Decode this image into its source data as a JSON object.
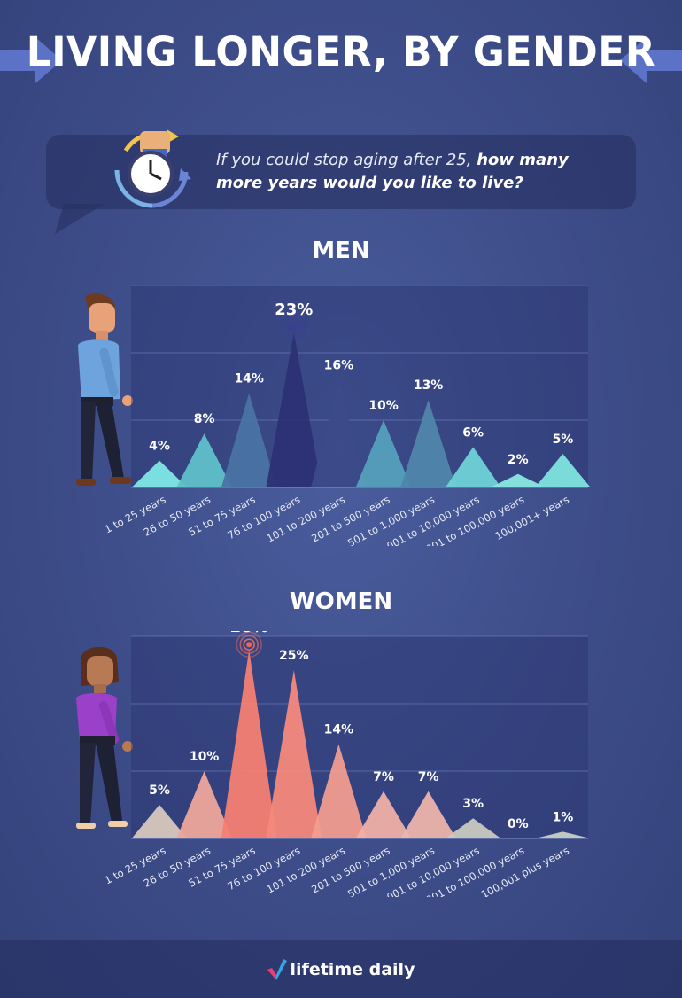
{
  "header": {
    "title": "LIVING LONGER, BY GENDER"
  },
  "question": {
    "part1": "If you could stop aging after 25, ",
    "part2": "how many more years would you like to live?"
  },
  "chart_data": [
    {
      "type": "bar",
      "title": "MEN",
      "categories": [
        "1 to 25 years",
        "26 to 50 years",
        "51 to 75 years",
        "76 to 100 years",
        "101 to 200 years",
        "201 to 500 years",
        "501 to 1,000 years",
        "1,001 to 10,000 years",
        "10,001 to 100,000 years",
        "100,001+ years"
      ],
      "values": [
        4,
        8,
        14,
        23,
        16,
        10,
        13,
        6,
        2,
        5
      ],
      "value_labels": [
        "4%",
        "8%",
        "14%",
        "23%",
        "16%",
        "10%",
        "13%",
        "6%",
        "2%",
        "5%"
      ],
      "unit": "%",
      "ylim": [
        0,
        30
      ],
      "grid": true,
      "highlight_index": 3,
      "colors": [
        "#7fe8e6",
        "#5fc0c8",
        "#4a73a3",
        "#2c3175",
        "#3c4b8a",
        "#55a0bc",
        "#4f86aa",
        "#6fd3d6",
        "#8ae8e2",
        "#7ee4df"
      ]
    },
    {
      "type": "bar",
      "title": "WOMEN",
      "categories": [
        "1 to 25 years",
        "26 to 50 years",
        "51 to 75 years",
        "76 to 100 years",
        "101 to 200 years",
        "201 to 500 years",
        "501 to 1,000 years",
        "1,001 to 10,000 years",
        "10,001 to 100,000 years",
        "100,001 plus years"
      ],
      "values": [
        5,
        10,
        28,
        25,
        14,
        7,
        7,
        3,
        0,
        1
      ],
      "value_labels": [
        "5%",
        "10%",
        "28%",
        "25%",
        "14%",
        "7%",
        "7%",
        "3%",
        "0%",
        "1%"
      ],
      "unit": "%",
      "ylim": [
        0,
        30
      ],
      "grid": true,
      "highlight_index": 2,
      "colors": [
        "#d8c8bd",
        "#eea79c",
        "#f47f73",
        "#f5897c",
        "#f29c90",
        "#efb0a6",
        "#edb4aa",
        "#c9c9bf",
        "#cfd0c6",
        "#c9cfc5"
      ]
    }
  ],
  "footer": {
    "logo_text": "lifetime daily"
  },
  "colors": {
    "accent_check_pink": "#ee3b73",
    "accent_check_blue": "#37a7e0",
    "arrow": "#5b72c6"
  }
}
